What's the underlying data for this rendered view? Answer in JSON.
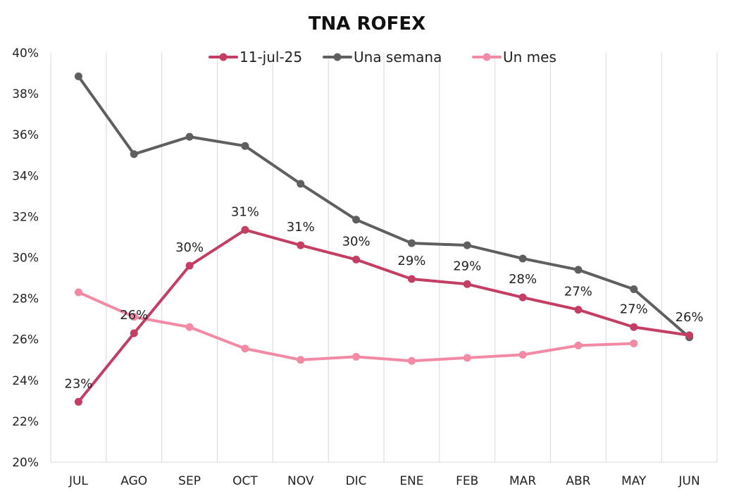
{
  "chart_data": {
    "type": "line",
    "title": "TNA ROFEX",
    "xlabel": "",
    "ylabel": "",
    "categories": [
      "JUL",
      "AGO",
      "SEP",
      "OCT",
      "NOV",
      "DIC",
      "ENE",
      "FEB",
      "MAR",
      "ABR",
      "MAY",
      "JUN"
    ],
    "ylim": [
      20,
      40
    ],
    "yticks": [
      20,
      22,
      24,
      26,
      28,
      30,
      32,
      34,
      36,
      38,
      40
    ],
    "ytick_labels": [
      "20%",
      "22%",
      "24%",
      "26%",
      "28%",
      "30%",
      "32%",
      "34%",
      "36%",
      "38%",
      "40%"
    ],
    "grid": "vertical",
    "legend_position": "top",
    "series": [
      {
        "name": "11-jul-25",
        "color": "#c43d63",
        "values": [
          22.95,
          26.3,
          29.6,
          31.35,
          30.6,
          29.9,
          28.95,
          28.7,
          28.05,
          27.45,
          26.6,
          26.2
        ],
        "data_labels": [
          "23%",
          "26%",
          "30%",
          "31%",
          "31%",
          "30%",
          "29%",
          "29%",
          "28%",
          "27%",
          "27%",
          "26%"
        ]
      },
      {
        "name": "Una semana",
        "color": "#5f5f5f",
        "values": [
          38.85,
          35.05,
          35.9,
          35.45,
          33.6,
          31.85,
          30.7,
          30.6,
          29.95,
          29.4,
          28.45,
          26.1
        ]
      },
      {
        "name": "Un mes",
        "color": "#f28aa5",
        "values": [
          28.3,
          27.1,
          26.6,
          25.55,
          25.0,
          25.15,
          24.95,
          25.1,
          25.25,
          25.7,
          25.8,
          null
        ]
      }
    ]
  }
}
